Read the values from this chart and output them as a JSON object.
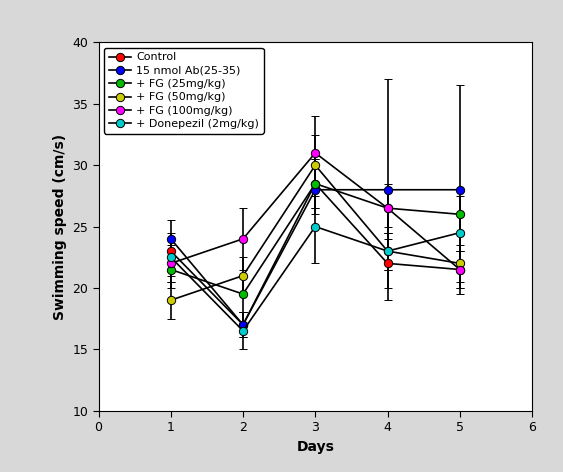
{
  "days": [
    1,
    2,
    3,
    4,
    5
  ],
  "xlim": [
    0,
    6
  ],
  "ylim": [
    10,
    40
  ],
  "yticks": [
    10,
    15,
    20,
    25,
    30,
    35,
    40
  ],
  "xticks": [
    0,
    1,
    2,
    3,
    4,
    5,
    6
  ],
  "xlabel": "Days",
  "ylabel": "Swimming speed (cm/s)",
  "series": [
    {
      "label": "Control",
      "color": "#ff0000",
      "marker": "o",
      "values": [
        23.0,
        17.0,
        28.5,
        22.0,
        21.5
      ],
      "errors": [
        1.5,
        1.0,
        2.0,
        2.0,
        1.5
      ]
    },
    {
      "label": "15 nmol Ab(25-35)",
      "color": "#0000ff",
      "marker": "o",
      "values": [
        24.0,
        17.0,
        28.0,
        28.0,
        28.0
      ],
      "errors": [
        1.5,
        1.0,
        2.0,
        9.0,
        8.5
      ]
    },
    {
      "label": "+ FG (25mg/kg)",
      "color": "#00bb00",
      "marker": "o",
      "values": [
        21.5,
        19.5,
        28.5,
        26.5,
        26.0
      ],
      "errors": [
        1.5,
        1.5,
        2.0,
        1.5,
        1.5
      ]
    },
    {
      "label": "+ FG (50mg/kg)",
      "color": "#cccc00",
      "marker": "o",
      "values": [
        19.0,
        21.0,
        30.0,
        23.0,
        22.0
      ],
      "errors": [
        1.5,
        1.5,
        2.5,
        1.5,
        1.5
      ]
    },
    {
      "label": "+ FG (100mg/kg)",
      "color": "#ff00ff",
      "marker": "o",
      "values": [
        22.0,
        24.0,
        31.0,
        26.5,
        21.5
      ],
      "errors": [
        1.5,
        2.5,
        3.0,
        2.0,
        1.5
      ]
    },
    {
      "label": "+ Donepezil (2mg/kg)",
      "color": "#00cccc",
      "marker": "o",
      "values": [
        22.5,
        16.5,
        25.0,
        23.0,
        24.5
      ],
      "errors": [
        1.5,
        1.5,
        3.0,
        1.5,
        1.5
      ]
    }
  ],
  "legend_loc": "upper left",
  "axis_fontsize": 10,
  "tick_fontsize": 9,
  "legend_fontsize": 8,
  "line_color": "#000000",
  "line_width": 1.2,
  "marker_size": 6,
  "background_color": "#ffffff",
  "outer_bg": "#d8d8d8"
}
